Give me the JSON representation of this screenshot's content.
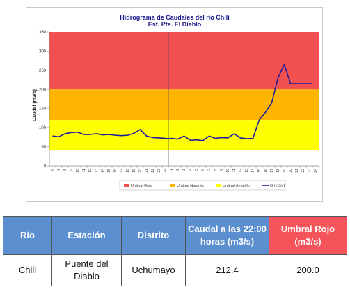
{
  "chart_data": {
    "type": "line",
    "title": "Hidrograma de Caudales del río Chili",
    "subtitle": "Est. Pte. El Diablo",
    "ylabel": "Caudal (m3/s)",
    "ylim": [
      0,
      350
    ],
    "yticks": [
      0,
      50,
      100,
      150,
      200,
      250,
      300,
      350
    ],
    "xtick_labels": [
      "6",
      "7",
      "8",
      "9",
      "10",
      "11",
      "12",
      "13",
      "14",
      "15",
      "16",
      "17",
      "18",
      "19",
      "20",
      "21",
      "22",
      "23",
      "24",
      "1",
      "2",
      "3",
      "4",
      "5",
      "6",
      "7",
      "8",
      "9",
      "10",
      "11",
      "12",
      "13",
      "14",
      "15",
      "16",
      "17",
      "18",
      "19",
      "20",
      "21",
      "22",
      "23",
      "24"
    ],
    "day_divider_after_tick": "24",
    "grid": false,
    "legend_position": "bottom",
    "thresholds": [
      {
        "name": "Umbral Rojo",
        "from": 200,
        "to": 350,
        "color": "#f25050"
      },
      {
        "name": "Umbral Naranja",
        "from": 120,
        "to": 200,
        "color": "#ffb400"
      },
      {
        "name": "Umbral Amarillo",
        "from": 40,
        "to": 120,
        "color": "#ffff00"
      }
    ],
    "series": [
      {
        "name": "Q (m3/s)",
        "color": "#1a1a9c",
        "x": [
          0,
          1,
          2,
          3,
          4,
          5,
          6,
          7,
          8,
          9,
          10,
          11,
          12,
          13,
          14,
          15,
          16,
          17,
          18,
          18.5,
          19,
          20,
          21,
          22,
          23,
          24,
          25,
          26,
          27,
          28,
          29,
          30,
          31,
          32,
          33,
          34,
          35,
          36,
          37,
          38,
          39,
          40,
          40.5,
          41,
          41.5
        ],
        "y": [
          78,
          76,
          84,
          87,
          88,
          82,
          82,
          84,
          81,
          82,
          80,
          79,
          80,
          85,
          95,
          78,
          74,
          73,
          72,
          71,
          72,
          70,
          78,
          67,
          68,
          66,
          78,
          72,
          74,
          73,
          84,
          73,
          71,
          72,
          120,
          140,
          165,
          230,
          265,
          215,
          215,
          215,
          215,
          215,
          215
        ]
      }
    ]
  },
  "table": {
    "headers": [
      "Río",
      "Estación",
      "Distrito",
      "Caudal a las 22:00 horas (m3/s)",
      "Umbral  Rojo (m3/s)"
    ],
    "row": [
      "Chili",
      "Puente del Diablo",
      "Uchumayo",
      "212.4",
      "200.0"
    ]
  }
}
